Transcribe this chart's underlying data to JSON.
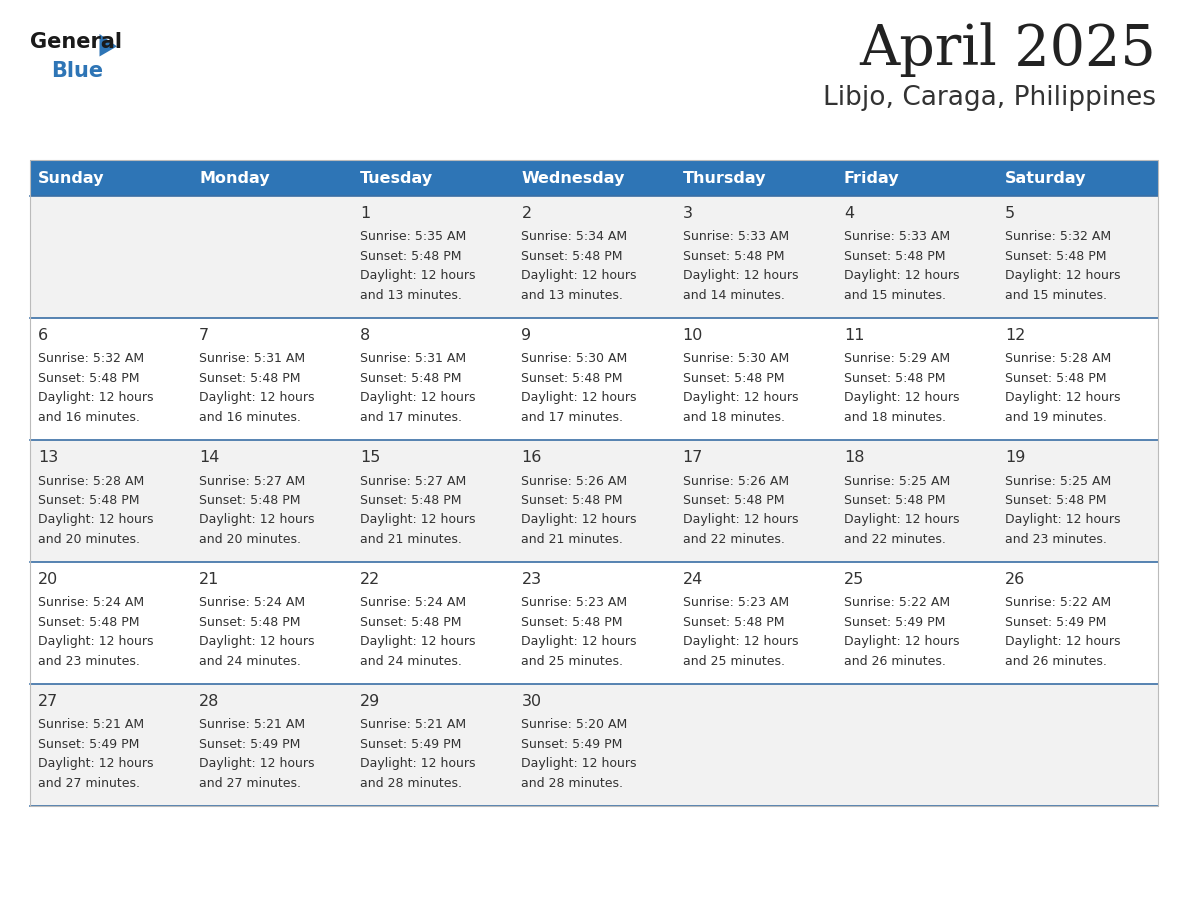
{
  "title": "April 2025",
  "subtitle": "Libjo, Caraga, Philippines",
  "header_bg": "#2E75B6",
  "header_text_color": "#FFFFFF",
  "day_names": [
    "Sunday",
    "Monday",
    "Tuesday",
    "Wednesday",
    "Thursday",
    "Friday",
    "Saturday"
  ],
  "row_bg_light": "#F2F2F2",
  "row_bg_white": "#FFFFFF",
  "divider_color": "#3A6EA5",
  "cell_text_color": "#333333",
  "day_number_color": "#333333",
  "title_color": "#222222",
  "subtitle_color": "#333333",
  "logo_general_color": "#1a1a1a",
  "logo_blue_color": "#2E75B6",
  "logo_triangle_color": "#2E75B6",
  "calendar": [
    [
      {
        "day": "",
        "sunrise": "",
        "sunset": "",
        "daylight": ""
      },
      {
        "day": "",
        "sunrise": "",
        "sunset": "",
        "daylight": ""
      },
      {
        "day": "1",
        "sunrise": "5:35 AM",
        "sunset": "5:48 PM",
        "daylight": "12 hours and 13 minutes."
      },
      {
        "day": "2",
        "sunrise": "5:34 AM",
        "sunset": "5:48 PM",
        "daylight": "12 hours and 13 minutes."
      },
      {
        "day": "3",
        "sunrise": "5:33 AM",
        "sunset": "5:48 PM",
        "daylight": "12 hours and 14 minutes."
      },
      {
        "day": "4",
        "sunrise": "5:33 AM",
        "sunset": "5:48 PM",
        "daylight": "12 hours and 15 minutes."
      },
      {
        "day": "5",
        "sunrise": "5:32 AM",
        "sunset": "5:48 PM",
        "daylight": "12 hours and 15 minutes."
      }
    ],
    [
      {
        "day": "6",
        "sunrise": "5:32 AM",
        "sunset": "5:48 PM",
        "daylight": "12 hours and 16 minutes."
      },
      {
        "day": "7",
        "sunrise": "5:31 AM",
        "sunset": "5:48 PM",
        "daylight": "12 hours and 16 minutes."
      },
      {
        "day": "8",
        "sunrise": "5:31 AM",
        "sunset": "5:48 PM",
        "daylight": "12 hours and 17 minutes."
      },
      {
        "day": "9",
        "sunrise": "5:30 AM",
        "sunset": "5:48 PM",
        "daylight": "12 hours and 17 minutes."
      },
      {
        "day": "10",
        "sunrise": "5:30 AM",
        "sunset": "5:48 PM",
        "daylight": "12 hours and 18 minutes."
      },
      {
        "day": "11",
        "sunrise": "5:29 AM",
        "sunset": "5:48 PM",
        "daylight": "12 hours and 18 minutes."
      },
      {
        "day": "12",
        "sunrise": "5:28 AM",
        "sunset": "5:48 PM",
        "daylight": "12 hours and 19 minutes."
      }
    ],
    [
      {
        "day": "13",
        "sunrise": "5:28 AM",
        "sunset": "5:48 PM",
        "daylight": "12 hours and 20 minutes."
      },
      {
        "day": "14",
        "sunrise": "5:27 AM",
        "sunset": "5:48 PM",
        "daylight": "12 hours and 20 minutes."
      },
      {
        "day": "15",
        "sunrise": "5:27 AM",
        "sunset": "5:48 PM",
        "daylight": "12 hours and 21 minutes."
      },
      {
        "day": "16",
        "sunrise": "5:26 AM",
        "sunset": "5:48 PM",
        "daylight": "12 hours and 21 minutes."
      },
      {
        "day": "17",
        "sunrise": "5:26 AM",
        "sunset": "5:48 PM",
        "daylight": "12 hours and 22 minutes."
      },
      {
        "day": "18",
        "sunrise": "5:25 AM",
        "sunset": "5:48 PM",
        "daylight": "12 hours and 22 minutes."
      },
      {
        "day": "19",
        "sunrise": "5:25 AM",
        "sunset": "5:48 PM",
        "daylight": "12 hours and 23 minutes."
      }
    ],
    [
      {
        "day": "20",
        "sunrise": "5:24 AM",
        "sunset": "5:48 PM",
        "daylight": "12 hours and 23 minutes."
      },
      {
        "day": "21",
        "sunrise": "5:24 AM",
        "sunset": "5:48 PM",
        "daylight": "12 hours and 24 minutes."
      },
      {
        "day": "22",
        "sunrise": "5:24 AM",
        "sunset": "5:48 PM",
        "daylight": "12 hours and 24 minutes."
      },
      {
        "day": "23",
        "sunrise": "5:23 AM",
        "sunset": "5:48 PM",
        "daylight": "12 hours and 25 minutes."
      },
      {
        "day": "24",
        "sunrise": "5:23 AM",
        "sunset": "5:48 PM",
        "daylight": "12 hours and 25 minutes."
      },
      {
        "day": "25",
        "sunrise": "5:22 AM",
        "sunset": "5:49 PM",
        "daylight": "12 hours and 26 minutes."
      },
      {
        "day": "26",
        "sunrise": "5:22 AM",
        "sunset": "5:49 PM",
        "daylight": "12 hours and 26 minutes."
      }
    ],
    [
      {
        "day": "27",
        "sunrise": "5:21 AM",
        "sunset": "5:49 PM",
        "daylight": "12 hours and 27 minutes."
      },
      {
        "day": "28",
        "sunrise": "5:21 AM",
        "sunset": "5:49 PM",
        "daylight": "12 hours and 27 minutes."
      },
      {
        "day": "29",
        "sunrise": "5:21 AM",
        "sunset": "5:49 PM",
        "daylight": "12 hours and 28 minutes."
      },
      {
        "day": "30",
        "sunrise": "5:20 AM",
        "sunset": "5:49 PM",
        "daylight": "12 hours and 28 minutes."
      },
      {
        "day": "",
        "sunrise": "",
        "sunset": "",
        "daylight": ""
      },
      {
        "day": "",
        "sunrise": "",
        "sunset": "",
        "daylight": ""
      },
      {
        "day": "",
        "sunrise": "",
        "sunset": "",
        "daylight": ""
      }
    ]
  ]
}
